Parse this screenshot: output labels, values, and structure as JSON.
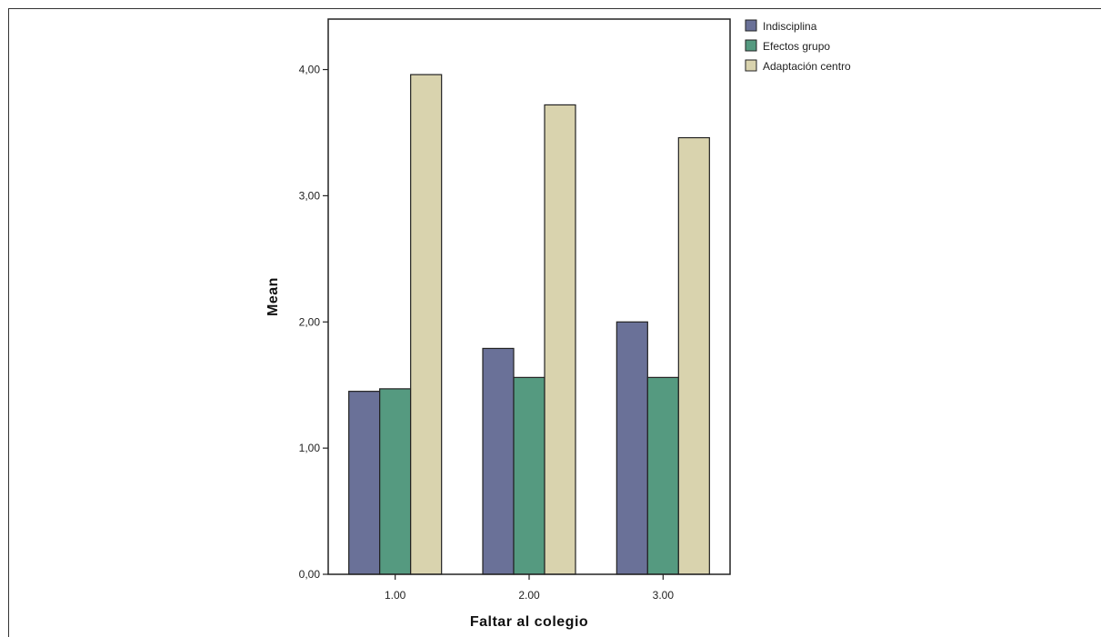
{
  "chart_data": {
    "type": "bar",
    "title": "",
    "xlabel": "Faltar al colegio",
    "ylabel": "Mean",
    "categories": [
      "1.00",
      "2.00",
      "3.00"
    ],
    "ylim": [
      0,
      4.4
    ],
    "yticks": [
      0,
      1,
      2,
      3,
      4
    ],
    "ytick_labels": [
      "0,00",
      "1,00",
      "2,00",
      "3,00",
      "4,00"
    ],
    "grid": false,
    "legend_position": "right",
    "series": [
      {
        "name": "Indisciplina",
        "color": "#6a7198",
        "values": [
          1.45,
          1.79,
          2.0
        ]
      },
      {
        "name": "Efectos grupo",
        "color": "#559a80",
        "values": [
          1.47,
          1.56,
          1.56
        ]
      },
      {
        "name": "Adaptación centro",
        "color": "#d9d3ae",
        "values": [
          3.96,
          3.72,
          3.46
        ]
      }
    ]
  }
}
